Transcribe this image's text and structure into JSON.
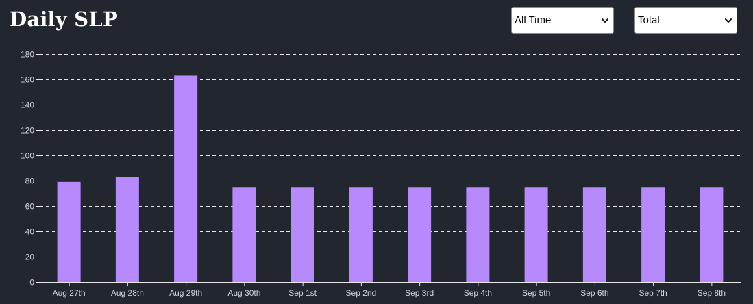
{
  "header": {
    "title": "Daily SLP"
  },
  "filters": {
    "range": {
      "selected": "All Time"
    },
    "metric": {
      "selected": "Total"
    }
  },
  "colors": {
    "background": "#22262e",
    "bar": "#b68afc",
    "grid": "#e8e8e8",
    "axis": "#e8e8e8",
    "tick_text": "#cfd3da"
  },
  "icons": {
    "dropdown": "chevron-down-icon"
  },
  "chart_data": {
    "type": "bar",
    "title": "Daily SLP",
    "xlabel": "",
    "ylabel": "",
    "categories": [
      "Aug 27th",
      "Aug 28th",
      "Aug 29th",
      "Aug 30th",
      "Sep 1st",
      "Sep 2nd",
      "Sep 3rd",
      "Sep 4th",
      "Sep 5th",
      "Sep 6th",
      "Sep 7th",
      "Sep 8th"
    ],
    "values": [
      79,
      83,
      163,
      75,
      75,
      75,
      75,
      75,
      75,
      75,
      75,
      75
    ],
    "ylim": [
      0,
      180
    ],
    "yticks": [
      0,
      20,
      40,
      60,
      80,
      100,
      120,
      140,
      160,
      180
    ],
    "grid": true,
    "grid_style": "dashed",
    "legend": "none"
  }
}
